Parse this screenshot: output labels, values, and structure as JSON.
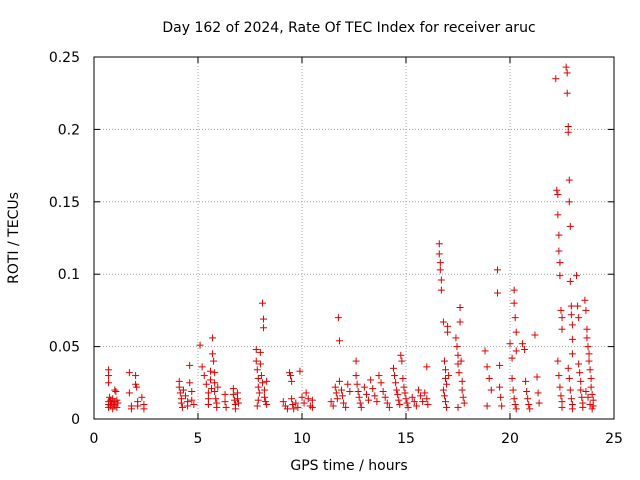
{
  "chart_data": {
    "type": "scatter",
    "title": "Day 162 of 2024, Rate Of TEC Index for receiver aruc",
    "xlabel": "GPS time / hours",
    "ylabel": "ROTI / TECUs",
    "xlim": [
      0,
      25
    ],
    "ylim": [
      0,
      0.25
    ],
    "xticks": [
      0,
      5,
      10,
      15,
      20,
      25
    ],
    "xtick_labels": [
      "0",
      "5",
      "10",
      "15",
      "20",
      "25"
    ],
    "yticks": [
      0,
      0.05,
      0.1,
      0.15,
      0.2,
      0.25
    ],
    "ytick_labels": [
      "0",
      "0.05",
      "0.1",
      "0.15",
      "0.2",
      "0.25"
    ],
    "grid": true,
    "marker": "+",
    "color": "#dd0000",
    "series": [
      {
        "name": "ROTI",
        "points": [
          [
            0.7,
            0.034
          ],
          [
            0.7,
            0.03
          ],
          [
            0.7,
            0.025
          ],
          [
            0.7,
            0.012
          ],
          [
            0.7,
            0.01
          ],
          [
            0.7,
            0.008
          ],
          [
            0.75,
            0.015
          ],
          [
            0.8,
            0.013
          ],
          [
            0.8,
            0.009
          ],
          [
            0.85,
            0.011
          ],
          [
            0.9,
            0.014
          ],
          [
            0.9,
            0.007
          ],
          [
            0.95,
            0.01
          ],
          [
            1.0,
            0.02
          ],
          [
            1.0,
            0.012
          ],
          [
            1.0,
            0.009
          ],
          [
            1.05,
            0.019
          ],
          [
            1.1,
            0.013
          ],
          [
            1.1,
            0.008
          ],
          [
            1.15,
            0.011
          ],
          [
            1.7,
            0.032
          ],
          [
            1.7,
            0.018
          ],
          [
            1.8,
            0.009
          ],
          [
            1.8,
            0.007
          ],
          [
            2.0,
            0.03
          ],
          [
            2.0,
            0.024
          ],
          [
            2.05,
            0.022
          ],
          [
            2.1,
            0.012
          ],
          [
            2.1,
            0.009
          ],
          [
            2.3,
            0.015
          ],
          [
            2.4,
            0.01
          ],
          [
            2.4,
            0.007
          ],
          [
            4.1,
            0.026
          ],
          [
            4.1,
            0.022
          ],
          [
            4.15,
            0.018
          ],
          [
            4.2,
            0.014
          ],
          [
            4.2,
            0.011
          ],
          [
            4.25,
            0.008
          ],
          [
            4.3,
            0.02
          ],
          [
            4.4,
            0.016
          ],
          [
            4.5,
            0.012
          ],
          [
            4.5,
            0.009
          ],
          [
            4.6,
            0.037
          ],
          [
            4.6,
            0.025
          ],
          [
            4.7,
            0.019
          ],
          [
            4.7,
            0.013
          ],
          [
            4.8,
            0.01
          ],
          [
            5.1,
            0.051
          ],
          [
            5.2,
            0.036
          ],
          [
            5.3,
            0.03
          ],
          [
            5.4,
            0.024
          ],
          [
            5.5,
            0.018
          ],
          [
            5.5,
            0.014
          ],
          [
            5.5,
            0.01
          ],
          [
            5.6,
            0.033
          ],
          [
            5.6,
            0.027
          ],
          [
            5.65,
            0.021
          ],
          [
            5.7,
            0.056
          ],
          [
            5.7,
            0.045
          ],
          [
            5.75,
            0.04
          ],
          [
            5.8,
            0.032
          ],
          [
            5.8,
            0.025
          ],
          [
            5.8,
            0.019
          ],
          [
            5.85,
            0.014
          ],
          [
            5.9,
            0.011
          ],
          [
            5.9,
            0.008
          ],
          [
            5.95,
            0.022
          ],
          [
            6.3,
            0.017
          ],
          [
            6.3,
            0.012
          ],
          [
            6.35,
            0.008
          ],
          [
            6.7,
            0.021
          ],
          [
            6.7,
            0.017
          ],
          [
            6.75,
            0.013
          ],
          [
            6.8,
            0.01
          ],
          [
            6.8,
            0.007
          ],
          [
            6.9,
            0.018
          ],
          [
            6.9,
            0.014
          ],
          [
            6.95,
            0.011
          ],
          [
            7.8,
            0.048
          ],
          [
            7.8,
            0.04
          ],
          [
            7.85,
            0.034
          ],
          [
            7.9,
            0.028
          ],
          [
            7.9,
            0.022
          ],
          [
            7.95,
            0.018
          ],
          [
            8.0,
            0.046
          ],
          [
            8.0,
            0.038
          ],
          [
            8.05,
            0.03
          ],
          [
            8.1,
            0.025
          ],
          [
            8.1,
            0.08
          ],
          [
            8.15,
            0.069
          ],
          [
            8.15,
            0.063
          ],
          [
            8.2,
            0.02
          ],
          [
            8.2,
            0.015
          ],
          [
            8.25,
            0.012
          ],
          [
            8.3,
            0.026
          ],
          [
            8.3,
            0.01
          ],
          [
            7.9,
            0.013
          ],
          [
            7.85,
            0.009
          ],
          [
            9.1,
            0.012
          ],
          [
            9.2,
            0.009
          ],
          [
            9.3,
            0.007
          ],
          [
            9.4,
            0.032
          ],
          [
            9.45,
            0.03
          ],
          [
            9.5,
            0.026
          ],
          [
            9.5,
            0.014
          ],
          [
            9.55,
            0.01
          ],
          [
            9.6,
            0.007
          ],
          [
            9.7,
            0.011
          ],
          [
            9.8,
            0.008
          ],
          [
            9.9,
            0.033
          ],
          [
            10.0,
            0.015
          ],
          [
            10.1,
            0.011
          ],
          [
            10.2,
            0.018
          ],
          [
            10.3,
            0.014
          ],
          [
            10.4,
            0.009
          ],
          [
            10.5,
            0.013
          ],
          [
            10.5,
            0.008
          ],
          [
            11.4,
            0.012
          ],
          [
            11.5,
            0.009
          ],
          [
            11.6,
            0.022
          ],
          [
            11.65,
            0.018
          ],
          [
            11.7,
            0.014
          ],
          [
            11.75,
            0.07
          ],
          [
            11.8,
            0.054
          ],
          [
            11.8,
            0.026
          ],
          [
            11.9,
            0.02
          ],
          [
            11.95,
            0.016
          ],
          [
            12.0,
            0.011
          ],
          [
            12.1,
            0.008
          ],
          [
            12.2,
            0.024
          ],
          [
            12.3,
            0.019
          ],
          [
            12.6,
            0.04
          ],
          [
            12.6,
            0.03
          ],
          [
            12.65,
            0.024
          ],
          [
            12.7,
            0.019
          ],
          [
            12.75,
            0.015
          ],
          [
            12.8,
            0.011
          ],
          [
            12.85,
            0.008
          ],
          [
            13.0,
            0.022
          ],
          [
            13.1,
            0.017
          ],
          [
            13.2,
            0.013
          ],
          [
            13.3,
            0.027
          ],
          [
            13.4,
            0.021
          ],
          [
            13.5,
            0.016
          ],
          [
            13.6,
            0.012
          ],
          [
            13.7,
            0.03
          ],
          [
            13.8,
            0.025
          ],
          [
            13.9,
            0.019
          ],
          [
            14.0,
            0.015
          ],
          [
            14.1,
            0.011
          ],
          [
            14.2,
            0.008
          ],
          [
            14.4,
            0.035
          ],
          [
            14.45,
            0.03
          ],
          [
            14.5,
            0.025
          ],
          [
            14.55,
            0.02
          ],
          [
            14.6,
            0.017
          ],
          [
            14.65,
            0.013
          ],
          [
            14.7,
            0.01
          ],
          [
            14.75,
            0.044
          ],
          [
            14.8,
            0.04
          ],
          [
            14.85,
            0.028
          ],
          [
            14.9,
            0.022
          ],
          [
            14.95,
            0.018
          ],
          [
            15.0,
            0.014
          ],
          [
            15.05,
            0.011
          ],
          [
            15.1,
            0.008
          ],
          [
            15.3,
            0.015
          ],
          [
            15.4,
            0.012
          ],
          [
            15.5,
            0.009
          ],
          [
            15.6,
            0.02
          ],
          [
            15.7,
            0.016
          ],
          [
            15.8,
            0.012
          ],
          [
            15.9,
            0.018
          ],
          [
            16.0,
            0.036
          ],
          [
            16.0,
            0.014
          ],
          [
            16.05,
            0.01
          ],
          [
            16.6,
            0.121
          ],
          [
            16.6,
            0.114
          ],
          [
            16.65,
            0.108
          ],
          [
            16.65,
            0.103
          ],
          [
            16.7,
            0.096
          ],
          [
            16.7,
            0.089
          ],
          [
            16.8,
            0.067
          ],
          [
            16.85,
            0.04
          ],
          [
            16.9,
            0.034
          ],
          [
            16.9,
            0.028
          ],
          [
            16.95,
            0.024
          ],
          [
            17.0,
            0.064
          ],
          [
            17.0,
            0.06
          ],
          [
            17.05,
            0.03
          ],
          [
            16.8,
            0.02
          ],
          [
            16.85,
            0.016
          ],
          [
            16.9,
            0.012
          ],
          [
            16.95,
            0.008
          ],
          [
            17.4,
            0.056
          ],
          [
            17.45,
            0.05
          ],
          [
            17.5,
            0.044
          ],
          [
            17.5,
            0.038
          ],
          [
            17.55,
            0.032
          ],
          [
            17.6,
            0.077
          ],
          [
            17.6,
            0.067
          ],
          [
            17.65,
            0.04
          ],
          [
            17.7,
            0.026
          ],
          [
            17.7,
            0.02
          ],
          [
            17.75,
            0.015
          ],
          [
            17.8,
            0.011
          ],
          [
            17.5,
            0.008
          ],
          [
            18.8,
            0.047
          ],
          [
            18.9,
            0.036
          ],
          [
            19.0,
            0.028
          ],
          [
            19.1,
            0.02
          ],
          [
            18.9,
            0.009
          ],
          [
            19.4,
            0.103
          ],
          [
            19.4,
            0.087
          ],
          [
            19.5,
            0.037
          ],
          [
            19.5,
            0.022
          ],
          [
            19.55,
            0.015
          ],
          [
            19.6,
            0.009
          ],
          [
            20.0,
            0.052
          ],
          [
            20.1,
            0.042
          ],
          [
            20.2,
            0.089
          ],
          [
            20.2,
            0.08
          ],
          [
            20.25,
            0.07
          ],
          [
            20.3,
            0.06
          ],
          [
            20.3,
            0.047
          ],
          [
            20.1,
            0.028
          ],
          [
            20.15,
            0.02
          ],
          [
            20.2,
            0.014
          ],
          [
            20.25,
            0.01
          ],
          [
            20.3,
            0.007
          ],
          [
            20.6,
            0.052
          ],
          [
            20.7,
            0.048
          ],
          [
            20.75,
            0.026
          ],
          [
            20.8,
            0.019
          ],
          [
            20.85,
            0.014
          ],
          [
            20.9,
            0.01
          ],
          [
            20.95,
            0.007
          ],
          [
            21.2,
            0.058
          ],
          [
            21.3,
            0.029
          ],
          [
            21.35,
            0.018
          ],
          [
            21.4,
            0.011
          ],
          [
            22.2,
            0.235
          ],
          [
            22.25,
            0.158
          ],
          [
            22.3,
            0.155
          ],
          [
            22.3,
            0.141
          ],
          [
            22.35,
            0.127
          ],
          [
            22.35,
            0.116
          ],
          [
            22.4,
            0.108
          ],
          [
            22.4,
            0.099
          ],
          [
            22.45,
            0.075
          ],
          [
            22.5,
            0.07
          ],
          [
            22.5,
            0.062
          ],
          [
            22.3,
            0.04
          ],
          [
            22.35,
            0.03
          ],
          [
            22.4,
            0.022
          ],
          [
            22.45,
            0.016
          ],
          [
            22.5,
            0.012
          ],
          [
            22.5,
            0.008
          ],
          [
            22.7,
            0.243
          ],
          [
            22.75,
            0.239
          ],
          [
            22.75,
            0.225
          ],
          [
            22.8,
            0.202
          ],
          [
            22.8,
            0.198
          ],
          [
            22.85,
            0.165
          ],
          [
            22.85,
            0.15
          ],
          [
            22.9,
            0.133
          ],
          [
            22.9,
            0.095
          ],
          [
            22.95,
            0.078
          ],
          [
            22.95,
            0.072
          ],
          [
            23.0,
            0.065
          ],
          [
            23.0,
            0.055
          ],
          [
            23.0,
            0.045
          ],
          [
            22.8,
            0.035
          ],
          [
            22.85,
            0.028
          ],
          [
            22.9,
            0.02
          ],
          [
            22.95,
            0.014
          ],
          [
            23.0,
            0.01
          ],
          [
            23.0,
            0.007
          ],
          [
            23.2,
            0.099
          ],
          [
            23.25,
            0.078
          ],
          [
            23.3,
            0.07
          ],
          [
            23.3,
            0.038
          ],
          [
            23.35,
            0.032
          ],
          [
            23.4,
            0.026
          ],
          [
            23.4,
            0.02
          ],
          [
            23.45,
            0.015
          ],
          [
            23.5,
            0.011
          ],
          [
            23.5,
            0.008
          ],
          [
            23.6,
            0.082
          ],
          [
            23.65,
            0.075
          ],
          [
            23.7,
            0.062
          ],
          [
            23.7,
            0.056
          ],
          [
            23.75,
            0.05
          ],
          [
            23.8,
            0.045
          ],
          [
            23.8,
            0.04
          ],
          [
            23.85,
            0.034
          ],
          [
            23.9,
            0.028
          ],
          [
            23.9,
            0.022
          ],
          [
            23.95,
            0.017
          ],
          [
            24.0,
            0.013
          ],
          [
            24.0,
            0.009
          ],
          [
            23.65,
            0.019
          ],
          [
            23.75,
            0.015
          ],
          [
            23.85,
            0.01
          ],
          [
            23.95,
            0.007
          ]
        ]
      }
    ]
  }
}
